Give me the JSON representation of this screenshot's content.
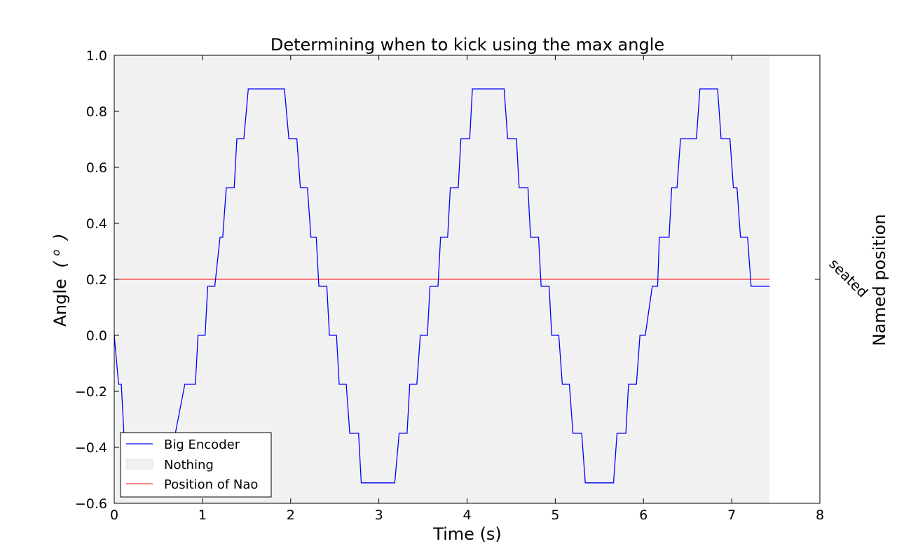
{
  "chart_data": {
    "type": "line",
    "title": "Determining when to kick using the max angle",
    "xlabel": "Time (s)",
    "ylabel_text": "Angle",
    "ylabel_unit_base": "(",
    "ylabel_unit_sup": "o",
    "ylabel_unit_close": ")",
    "right_ylabel": "Named position",
    "right_tick_label": "seated",
    "right_tick_value": 0.2,
    "xlim": [
      0,
      8
    ],
    "ylim": [
      -0.6,
      1.0
    ],
    "xticks": [
      0,
      1,
      2,
      3,
      4,
      5,
      6,
      7,
      8
    ],
    "xtick_labels": [
      "0",
      "1",
      "2",
      "3",
      "4",
      "5",
      "6",
      "7",
      "8"
    ],
    "yticks": [
      -0.6,
      -0.4,
      -0.2,
      0.0,
      0.2,
      0.4,
      0.6,
      0.8,
      1.0
    ],
    "ytick_labels": [
      "−0.6",
      "−0.4",
      "−0.2",
      "0.0",
      "0.2",
      "0.4",
      "0.6",
      "0.8",
      "1.0"
    ],
    "grid": false,
    "legend_position": "lower-left",
    "shaded_region": {
      "name": "Nothing",
      "x_start": 0,
      "x_end": 7.43,
      "color": "#f1f1f1"
    },
    "hline": {
      "name": "Position of Nao",
      "y": 0.2,
      "color": "#ff0000"
    },
    "series": [
      {
        "name": "Big Encoder",
        "color": "#0000ff",
        "x": [
          0.0,
          0.05,
          0.08,
          0.11,
          0.14,
          0.15,
          0.16,
          0.17,
          0.6,
          0.62,
          0.8,
          0.92,
          0.95,
          1.03,
          1.06,
          1.14,
          1.2,
          1.23,
          1.27,
          1.36,
          1.39,
          1.47,
          1.52,
          1.54,
          1.57,
          1.93,
          1.98,
          2.07,
          2.11,
          2.19,
          2.23,
          2.29,
          2.32,
          2.41,
          2.44,
          2.52,
          2.55,
          2.63,
          2.67,
          2.77,
          2.8,
          3.18,
          3.23,
          3.32,
          3.35,
          3.43,
          3.47,
          3.55,
          3.58,
          3.67,
          3.7,
          3.78,
          3.81,
          3.9,
          3.93,
          4.03,
          4.06,
          4.42,
          4.46,
          4.56,
          4.59,
          4.69,
          4.72,
          4.81,
          4.84,
          4.93,
          4.96,
          5.04,
          5.08,
          5.16,
          5.2,
          5.3,
          5.34,
          5.66,
          5.7,
          5.8,
          5.83,
          5.92,
          5.96,
          6.02,
          6.1,
          6.16,
          6.18,
          6.29,
          6.32,
          6.38,
          6.42,
          6.6,
          6.64,
          6.84,
          6.88,
          6.98,
          7.02,
          7.06,
          7.1,
          7.18,
          7.22,
          7.25,
          7.29,
          7.33,
          7.43
        ],
        "y": [
          0.0,
          -0.175,
          -0.175,
          -0.35,
          -0.42,
          -0.45,
          -0.47,
          -0.48,
          -0.48,
          -0.47,
          -0.175,
          -0.175,
          0.0,
          0.0,
          0.175,
          0.175,
          0.35,
          0.35,
          0.527,
          0.527,
          0.702,
          0.702,
          0.88,
          0.88,
          0.88,
          0.88,
          0.702,
          0.702,
          0.527,
          0.527,
          0.35,
          0.35,
          0.175,
          0.175,
          0.0,
          0.0,
          -0.175,
          -0.175,
          -0.35,
          -0.35,
          -0.527,
          -0.527,
          -0.35,
          -0.35,
          -0.175,
          -0.175,
          0.0,
          0.0,
          0.175,
          0.175,
          0.35,
          0.35,
          0.527,
          0.527,
          0.702,
          0.702,
          0.88,
          0.88,
          0.702,
          0.702,
          0.527,
          0.527,
          0.35,
          0.35,
          0.175,
          0.175,
          0.0,
          0.0,
          -0.175,
          -0.175,
          -0.35,
          -0.35,
          -0.527,
          -0.527,
          -0.35,
          -0.35,
          -0.175,
          -0.175,
          0.0,
          0.0,
          0.175,
          0.175,
          0.35,
          0.35,
          0.527,
          0.527,
          0.702,
          0.702,
          0.88,
          0.88,
          0.702,
          0.702,
          0.527,
          0.527,
          0.35,
          0.35,
          0.175,
          0.175,
          0.175,
          0.175,
          0.175
        ]
      }
    ]
  },
  "legend": {
    "items": [
      {
        "label": "Big Encoder",
        "kind": "line",
        "color": "#0000ff"
      },
      {
        "label": "Nothing",
        "kind": "patch",
        "color": "#f1f1f1"
      },
      {
        "label": "Position of Nao",
        "kind": "line",
        "color": "#ff0000"
      }
    ]
  }
}
